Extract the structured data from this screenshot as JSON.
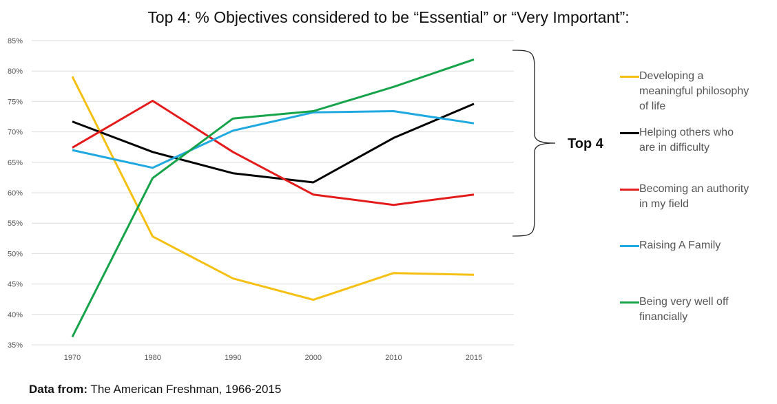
{
  "title": "Top 4: % Objectives considered to be “Essential”  or “Very Important”:",
  "annotation": "Top 4",
  "source": {
    "label": "Data from:",
    "text": " The American Freshman, 1966-2015"
  },
  "chart_data": {
    "type": "line",
    "x": [
      "1970",
      "1980",
      "1990",
      "2000",
      "2010",
      "2015"
    ],
    "ylim": [
      35,
      85
    ],
    "yticks": [
      "35%",
      "40%",
      "45%",
      "50%",
      "55%",
      "60%",
      "65%",
      "70%",
      "75%",
      "80%",
      "85%"
    ],
    "grid": true,
    "legend_position": "right",
    "series": [
      {
        "name": "Developing a meaningful philosophy of life",
        "color": "#f5c012",
        "values": [
          79.1,
          52.8,
          45.9,
          42.4,
          46.8,
          46.5
        ]
      },
      {
        "name": "Helping others who are in difficulty",
        "color": "#000000",
        "values": [
          71.7,
          66.7,
          63.2,
          61.7,
          69.0,
          74.6
        ]
      },
      {
        "name": "Becoming an authority in my field",
        "color": "#e31b1b",
        "values": [
          67.4,
          75.1,
          66.7,
          59.7,
          58.0,
          59.7
        ]
      },
      {
        "name": "Raising A Family",
        "color": "#1fa9e0",
        "values": [
          67.0,
          64.1,
          70.2,
          73.2,
          73.4,
          71.4
        ]
      },
      {
        "name": "Being very well off financially",
        "color": "#16a34a",
        "values": [
          36.3,
          62.4,
          72.2,
          73.4,
          77.4,
          81.9
        ]
      }
    ]
  }
}
